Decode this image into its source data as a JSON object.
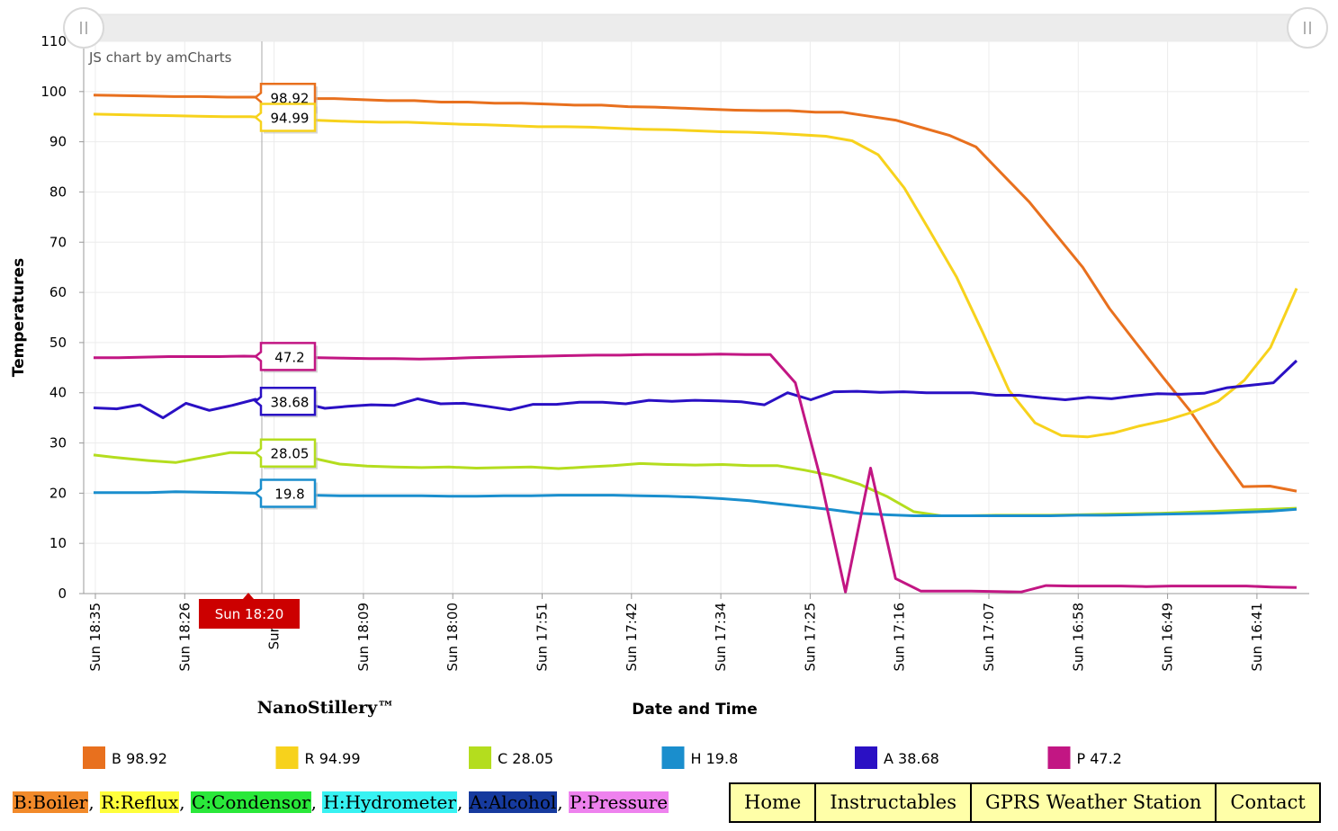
{
  "chart_data": {
    "type": "line",
    "credit": "JS chart by amCharts",
    "ylabel": "Temperatures",
    "xlabel": "Date and Time",
    "brand": "NanoStillery™",
    "ylim": [
      0,
      110
    ],
    "yticks": [
      0,
      10,
      20,
      30,
      40,
      50,
      60,
      70,
      80,
      90,
      100,
      110
    ],
    "xtick_labels": [
      "Sun 18:35",
      "Sun 18:26",
      "Sun 18",
      "Sun 18:09",
      "Sun 18:00",
      "Sun 17:51",
      "Sun 17:42",
      "Sun 17:34",
      "Sun 17:25",
      "Sun 17:16",
      "Sun 17:07",
      "Sun 16:58",
      "Sun 16:49",
      "Sun 16:41"
    ],
    "cursor_label": "Sun 18:20",
    "grid": true,
    "legend_position": "bottom",
    "series": [
      {
        "name": "B",
        "color": "#e8701e",
        "legend_value": "98.92",
        "balloon": "98.92",
        "values": [
          99.3,
          99.2,
          99.1,
          99.0,
          99.0,
          98.9,
          98.9,
          98.7,
          98.6,
          98.6,
          98.4,
          98.2,
          98.2,
          97.9,
          97.9,
          97.7,
          97.7,
          97.5,
          97.3,
          97.3,
          97.0,
          96.9,
          96.7,
          96.5,
          96.3,
          96.2,
          96.2,
          95.9,
          95.9,
          95.1,
          94.3,
          92.8,
          91.3,
          89.0,
          83.5,
          78.0,
          71.5,
          65.0,
          56.8,
          49.9,
          43.1,
          36.5,
          28.7,
          21.3,
          21.4,
          20.4
        ]
      },
      {
        "name": "R",
        "color": "#f7d21c",
        "legend_value": "94.99",
        "balloon": "94.99",
        "values": [
          95.5,
          95.4,
          95.3,
          95.2,
          95.1,
          95.0,
          95.0,
          94.7,
          94.4,
          94.2,
          94.0,
          93.9,
          93.9,
          93.7,
          93.5,
          93.4,
          93.2,
          93.0,
          93.0,
          92.9,
          92.7,
          92.5,
          92.4,
          92.2,
          92.0,
          91.9,
          91.7,
          91.4,
          91.1,
          90.2,
          87.4,
          80.8,
          72.0,
          63.0,
          52.0,
          40.5,
          34.0,
          31.5,
          31.2,
          32.0,
          33.4,
          34.5,
          36.1,
          38.3,
          42.5,
          49.0,
          60.8
        ]
      },
      {
        "name": "C",
        "color": "#b4dd1e",
        "legend_value": "28.05",
        "balloon": "28.05",
        "values": [
          27.6,
          27.0,
          26.5,
          26.1,
          27.1,
          28.1,
          28.0,
          28.0,
          27.0,
          25.8,
          25.4,
          25.2,
          25.1,
          25.2,
          25.0,
          25.1,
          25.2,
          24.9,
          25.2,
          25.5,
          25.9,
          25.7,
          25.6,
          25.7,
          25.5,
          25.5,
          24.6,
          23.5,
          21.8,
          19.4,
          16.3,
          15.5,
          15.5,
          15.6,
          15.6,
          15.6,
          15.7,
          15.8,
          15.9,
          16.0,
          16.2,
          16.4,
          16.6,
          16.8,
          17.0
        ]
      },
      {
        "name": "H",
        "color": "#1a8ecd",
        "legend_value": "19.8",
        "balloon": "19.8",
        "values": [
          20.1,
          20.1,
          20.1,
          20.3,
          20.2,
          20.1,
          20.0,
          19.8,
          19.6,
          19.5,
          19.5,
          19.5,
          19.5,
          19.4,
          19.4,
          19.5,
          19.5,
          19.6,
          19.6,
          19.6,
          19.5,
          19.4,
          19.2,
          18.9,
          18.5,
          17.9,
          17.3,
          16.7,
          16.0,
          15.7,
          15.5,
          15.5,
          15.5,
          15.5,
          15.5,
          15.5,
          15.6,
          15.6,
          15.7,
          15.8,
          15.9,
          16.0,
          16.2,
          16.4,
          16.8
        ]
      },
      {
        "name": "A",
        "color": "#2a10c4",
        "legend_value": "38.68",
        "balloon": "38.68",
        "values": [
          37.0,
          36.8,
          37.6,
          35.0,
          37.9,
          36.5,
          37.5,
          38.7,
          37.2,
          38.0,
          36.9,
          37.3,
          37.6,
          37.5,
          38.8,
          37.8,
          37.9,
          37.3,
          36.6,
          37.7,
          37.7,
          38.1,
          38.1,
          37.8,
          38.5,
          38.3,
          38.5,
          38.4,
          38.2,
          37.6,
          40.0,
          38.6,
          40.2,
          40.3,
          40.1,
          40.2,
          40.0,
          40.0,
          40.0,
          39.5,
          39.5,
          39.0,
          38.6,
          39.1,
          38.8,
          39.4,
          39.8,
          39.7,
          39.9,
          41.0,
          41.5,
          42.0,
          46.4
        ]
      },
      {
        "name": "P",
        "color": "#c21683",
        "legend_value": "47.2",
        "balloon": "47.2",
        "values": [
          47.0,
          47.0,
          47.1,
          47.2,
          47.2,
          47.2,
          47.3,
          47.2,
          47.1,
          47.0,
          46.9,
          46.8,
          46.8,
          46.7,
          46.8,
          47.0,
          47.1,
          47.2,
          47.3,
          47.4,
          47.5,
          47.5,
          47.6,
          47.6,
          47.6,
          47.7,
          47.6,
          47.6,
          42.0,
          23.0,
          0.3,
          25.0,
          3.0,
          0.5,
          0.5,
          0.5,
          0.4,
          0.3,
          1.6,
          1.5,
          1.5,
          1.5,
          1.4,
          1.5,
          1.5,
          1.5,
          1.5,
          1.3,
          1.2
        ]
      }
    ]
  },
  "key": [
    {
      "label": "B:Boiler",
      "bg": "#f28a2a",
      "color": "#000000"
    },
    {
      "label": "R:Reflux",
      "bg": "#ffff3c",
      "color": "#000000"
    },
    {
      "label": "C:Condensor",
      "bg": "#2ae83a",
      "color": "#000000"
    },
    {
      "label": "H:Hydrometer",
      "bg": "#37f2f2",
      "color": "#000000"
    },
    {
      "label": "A:Alcohol",
      "bg": "#163a9e",
      "color": "#000000"
    },
    {
      "label": "P:Pressure",
      "bg": "#ee82ee",
      "color": "#000000"
    }
  ],
  "key_separator": ",",
  "nav": [
    "Home",
    "Instructables",
    "GPRS Weather Station",
    "Contact"
  ]
}
